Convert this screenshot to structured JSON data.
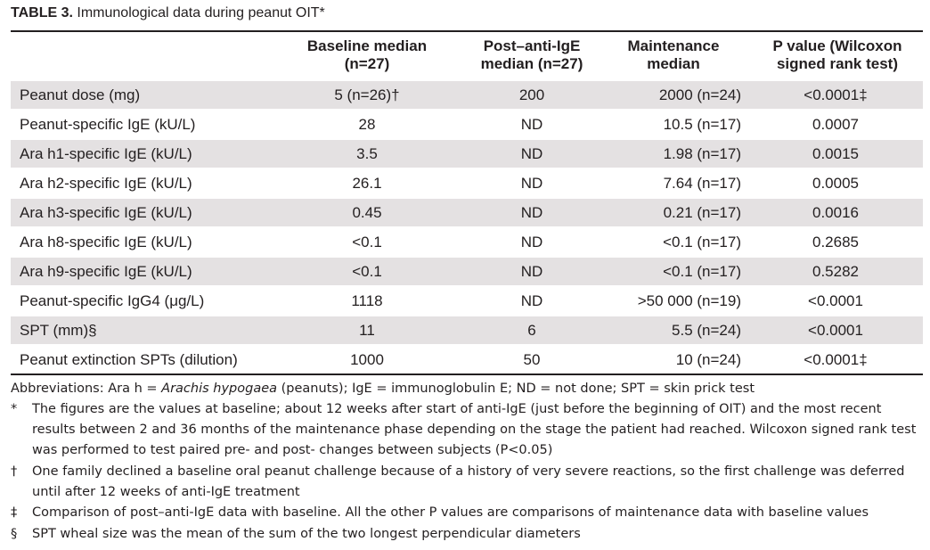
{
  "title": {
    "label": "TABLE 3.",
    "text": "Immunological data during peanut OIT*"
  },
  "headers": {
    "baseline": [
      "Baseline median",
      "(n=27)"
    ],
    "post": [
      "Post–anti-IgE",
      "median (n=27)"
    ],
    "maintenance": [
      "Maintenance",
      "median"
    ],
    "pvalue": [
      "P value (Wilcoxon",
      "signed rank test)"
    ]
  },
  "rows": [
    {
      "label": "Peanut dose (mg)",
      "baseline": "5 (n=26)†",
      "post": "200",
      "maintenance": "2000 (n=24)",
      "p": "<0.0001‡"
    },
    {
      "label": "Peanut-specific IgE (kU/L)",
      "baseline": "28",
      "post": "ND",
      "maintenance": "10.5 (n=17)",
      "p": "0.0007"
    },
    {
      "label": "Ara h1-specific IgE (kU/L)",
      "baseline": "3.5",
      "post": "ND",
      "maintenance": "1.98 (n=17)",
      "p": "0.0015"
    },
    {
      "label": "Ara h2-specific IgE (kU/L)",
      "baseline": "26.1",
      "post": "ND",
      "maintenance": "7.64 (n=17)",
      "p": "0.0005"
    },
    {
      "label": "Ara h3-specific IgE (kU/L)",
      "baseline": "0.45",
      "post": "ND",
      "maintenance": "0.21 (n=17)",
      "p": "0.0016"
    },
    {
      "label": "Ara h8-specific IgE (kU/L)",
      "baseline": "<0.1",
      "post": "ND",
      "maintenance": "<0.1 (n=17)",
      "p": "0.2685"
    },
    {
      "label": "Ara h9-specific IgE (kU/L)",
      "baseline": "<0.1",
      "post": "ND",
      "maintenance": "<0.1 (n=17)",
      "p": "0.5282"
    },
    {
      "label": "Peanut-specific IgG4 (μg/L)",
      "baseline": "1118",
      "post": "ND",
      "maintenance": ">50 000 (n=19)",
      "p": "<0.0001"
    },
    {
      "label": "SPT (mm)§",
      "baseline": "11",
      "post": "6",
      "maintenance": "5.5 (n=24)",
      "p": "<0.0001"
    },
    {
      "label": "Peanut extinction SPTs (dilution)",
      "baseline": "1000",
      "post": "50",
      "maintenance": "10 (n=24)",
      "p": "<0.0001‡"
    }
  ],
  "abbreviations": {
    "prefix": "Abbreviations: Ara h = ",
    "italic": "Arachis hypogaea",
    "suffix": " (peanuts); IgE = immunoglobulin E; ND = not done; SPT = skin prick test"
  },
  "footnotes": [
    {
      "mark": "*",
      "text": "The figures are the values at baseline; about 12 weeks after start of anti-IgE (just before the beginning of OIT) and the most recent results between 2 and 36 months of the maintenance phase depending on the stage the patient had reached. Wilcoxon signed rank test was performed to test paired pre- and post- changes between subjects (P<0.05)"
    },
    {
      "mark": "†",
      "text": "One family declined a baseline oral peanut challenge because of a history of very severe reactions, so the first challenge was deferred until after 12 weeks of anti-IgE treatment"
    },
    {
      "mark": "‡",
      "text": "Comparison of post–anti-IgE data with baseline. All the other P values are comparisons of maintenance data with baseline values"
    },
    {
      "mark": "§",
      "text": "SPT wheal size was the mean of the sum of the two longest perpendicular diameters"
    }
  ],
  "colors": {
    "row_shade": "#e4e1e2",
    "text": "#231f20"
  }
}
